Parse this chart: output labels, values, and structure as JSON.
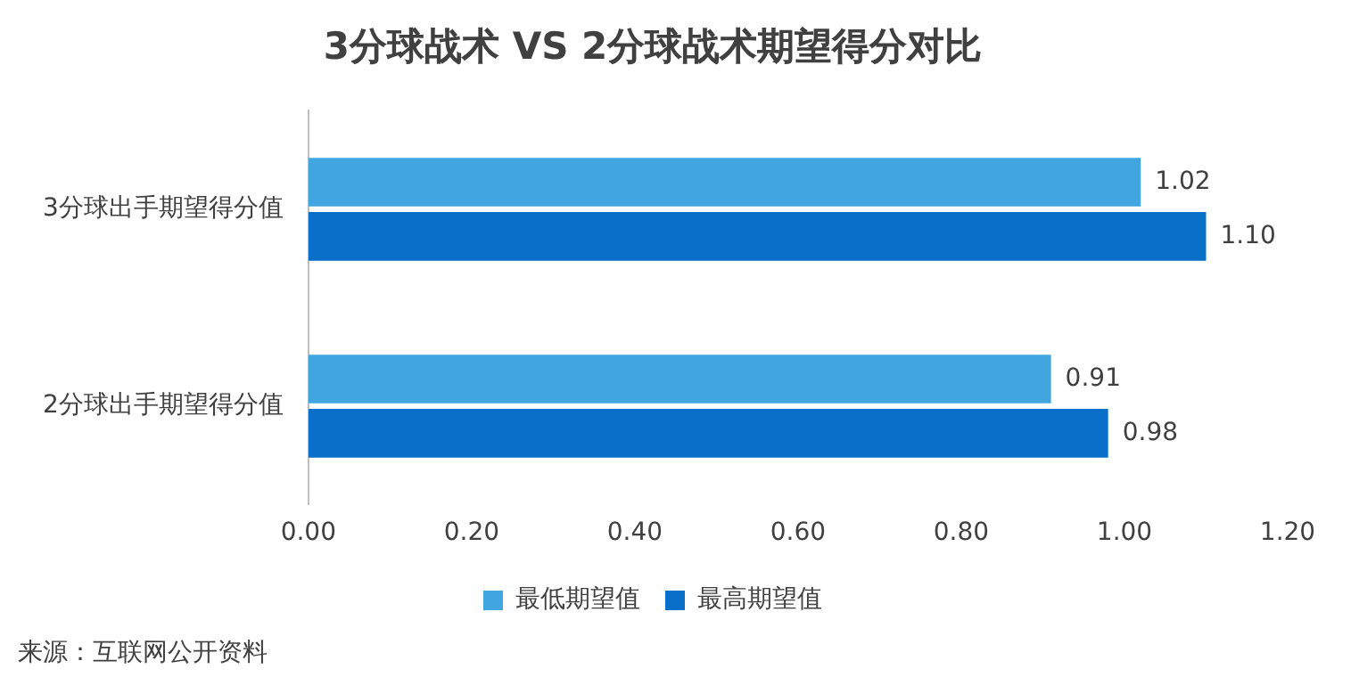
{
  "chart_data": {
    "type": "bar",
    "orientation": "horizontal",
    "title": "3分球战术 VS 2分球战术期望得分对比",
    "categories": [
      "3分球出手期望得分值",
      "2分球出手期望得分值"
    ],
    "series": [
      {
        "name": "最低期望值",
        "color": "#41a6e0",
        "values": [
          1.02,
          0.91
        ],
        "value_labels": [
          "1.02",
          "0.91"
        ]
      },
      {
        "name": "最高期望值",
        "color": "#0a6fc9",
        "values": [
          1.1,
          0.98
        ],
        "value_labels": [
          "1.10",
          "0.98"
        ]
      }
    ],
    "xlim": [
      0,
      1.2
    ],
    "xticks": [
      {
        "value": 0,
        "label": "0.00"
      },
      {
        "value": 0.2,
        "label": "0.20"
      },
      {
        "value": 0.4,
        "label": "0.40"
      },
      {
        "value": 0.6,
        "label": "0.60"
      },
      {
        "value": 0.8,
        "label": "0.80"
      },
      {
        "value": 1,
        "label": "1.00"
      },
      {
        "value": 1.2,
        "label": "1.20"
      }
    ],
    "grid": false,
    "legend": "bottom",
    "annotations": [
      "来源：互联网公开资料"
    ]
  }
}
